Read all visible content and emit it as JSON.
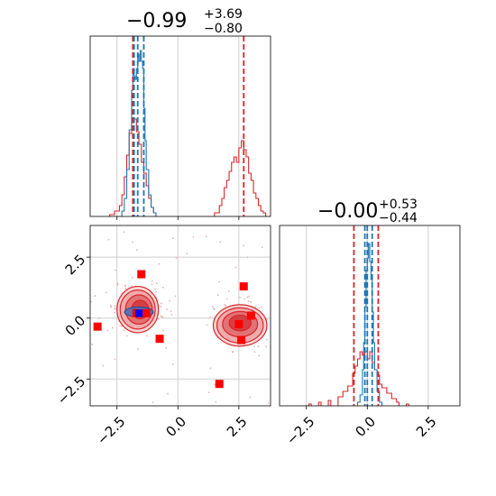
{
  "chart_data": {
    "type": "corner",
    "range": [
      -3.6,
      3.8
    ],
    "panels": [
      {
        "id": "hist1",
        "kind": "hist",
        "title": {
          "main": "−0.99",
          "sup": "+3.69",
          "sub": "−0.80"
        },
        "quantile_lines": {
          "red": [
            -1.85,
            2.7
          ],
          "blue": [
            -1.8,
            -1.65,
            -1.4
          ]
        },
        "series": [
          {
            "name": "red",
            "color": "#d62728",
            "bins": [
              [
                -2.8,
                0.01
              ],
              [
                -2.6,
                0.03
              ],
              [
                -2.4,
                0.06
              ],
              [
                -2.3,
                0.12
              ],
              [
                -2.2,
                0.22
              ],
              [
                -2.1,
                0.34
              ],
              [
                -2.0,
                0.46
              ],
              [
                -1.9,
                0.52
              ],
              [
                -1.8,
                0.54
              ],
              [
                -1.7,
                0.47
              ],
              [
                -1.6,
                0.4
              ],
              [
                -1.5,
                0.3
              ],
              [
                -1.4,
                0.24
              ],
              [
                -1.3,
                0.17
              ],
              [
                -1.2,
                0.1
              ],
              [
                -1.1,
                0.05
              ],
              [
                -1.0,
                0.02
              ],
              [
                1.5,
                0.02
              ],
              [
                1.7,
                0.06
              ],
              [
                1.8,
                0.1
              ],
              [
                1.9,
                0.16
              ],
              [
                2.0,
                0.2
              ],
              [
                2.1,
                0.25
              ],
              [
                2.2,
                0.3
              ],
              [
                2.3,
                0.33
              ],
              [
                2.4,
                0.3
              ],
              [
                2.5,
                0.38
              ],
              [
                2.6,
                0.42
              ],
              [
                2.7,
                0.37
              ],
              [
                2.8,
                0.33
              ],
              [
                2.9,
                0.24
              ],
              [
                3.0,
                0.2
              ],
              [
                3.1,
                0.13
              ],
              [
                3.2,
                0.1
              ],
              [
                3.3,
                0.06
              ],
              [
                3.4,
                0.03
              ],
              [
                3.5,
                0.02
              ]
            ]
          },
          {
            "name": "blue",
            "color": "#1f77b4",
            "bins": [
              [
                -2.3,
                0.03
              ],
              [
                -2.2,
                0.1
              ],
              [
                -2.1,
                0.26
              ],
              [
                -2.0,
                0.48
              ],
              [
                -1.9,
                0.7
              ],
              [
                -1.85,
                0.82
              ],
              [
                -1.8,
                0.78
              ],
              [
                -1.75,
                0.76
              ],
              [
                -1.7,
                0.82
              ],
              [
                -1.65,
                0.9
              ],
              [
                -1.6,
                0.86
              ],
              [
                -1.55,
                0.92
              ],
              [
                -1.5,
                0.86
              ],
              [
                -1.45,
                0.82
              ],
              [
                -1.4,
                0.6
              ],
              [
                -1.35,
                0.42
              ],
              [
                -1.3,
                0.26
              ],
              [
                -1.2,
                0.12
              ],
              [
                -1.1,
                0.05
              ],
              [
                -1.0,
                0.02
              ]
            ]
          }
        ]
      },
      {
        "id": "scatter",
        "kind": "2d",
        "xticks": [
          -2.5,
          0.0,
          2.5
        ],
        "yticks": [
          -2.5,
          0.0,
          2.5
        ],
        "markers_red": [
          [
            -1.5,
            1.8
          ],
          [
            -3.3,
            -0.35
          ],
          [
            -0.75,
            -0.85
          ],
          [
            -1.3,
            0.2
          ],
          [
            -1.7,
            0.2
          ],
          [
            2.7,
            1.3
          ],
          [
            2.5,
            -0.25
          ],
          [
            2.6,
            -0.9
          ],
          [
            3.0,
            0.1
          ],
          [
            1.7,
            -2.7
          ]
        ],
        "markers_blue": [
          [
            -1.6,
            0.2
          ]
        ],
        "contours": [
          {
            "cx": -1.65,
            "cy": 0.35,
            "rx": 0.85,
            "ry": 0.95
          },
          {
            "cx": -1.65,
            "cy": 0.35,
            "rx": 0.72,
            "ry": 0.8
          },
          {
            "cx": -1.6,
            "cy": 0.35,
            "rx": 0.55,
            "ry": 0.6
          },
          {
            "cx": -1.55,
            "cy": 0.35,
            "rx": 0.35,
            "ry": 0.38
          },
          {
            "cx": 2.55,
            "cy": -0.3,
            "rx": 1.1,
            "ry": 0.85
          },
          {
            "cx": 2.55,
            "cy": -0.3,
            "rx": 0.95,
            "ry": 0.72
          },
          {
            "cx": 2.55,
            "cy": -0.25,
            "rx": 0.72,
            "ry": 0.52
          },
          {
            "cx": 2.55,
            "cy": -0.2,
            "rx": 0.45,
            "ry": 0.32
          }
        ]
      },
      {
        "id": "hist2",
        "kind": "hist",
        "title": {
          "main": "−0.00",
          "sup": "+0.53",
          "sub": "−0.44"
        },
        "xticks": [
          -2.5,
          0.0,
          2.5
        ],
        "quantile_lines": {
          "red": [
            -0.55,
            0.45
          ],
          "blue": [
            -0.1,
            0.0,
            0.2
          ]
        },
        "series": [
          {
            "name": "red",
            "color": "#d62728",
            "bins": [
              [
                -2.4,
                0.01
              ],
              [
                -2.0,
                0.02
              ],
              [
                -1.6,
                0.03
              ],
              [
                -1.2,
                0.05
              ],
              [
                -1.0,
                0.08
              ],
              [
                -0.8,
                0.11
              ],
              [
                -0.6,
                0.18
              ],
              [
                -0.5,
                0.22
              ],
              [
                -0.4,
                0.26
              ],
              [
                -0.3,
                0.3
              ],
              [
                -0.2,
                0.28
              ],
              [
                -0.1,
                0.3
              ],
              [
                0.0,
                0.26
              ],
              [
                0.1,
                0.3
              ],
              [
                0.2,
                0.24
              ],
              [
                0.3,
                0.2
              ],
              [
                0.4,
                0.17
              ],
              [
                0.5,
                0.12
              ],
              [
                0.6,
                0.1
              ],
              [
                0.8,
                0.07
              ],
              [
                1.0,
                0.04
              ],
              [
                1.2,
                0.02
              ],
              [
                1.6,
                0.01
              ]
            ]
          },
          {
            "name": "blue",
            "color": "#1f77b4",
            "bins": [
              [
                -0.4,
                0.02
              ],
              [
                -0.3,
                0.06
              ],
              [
                -0.2,
                0.2
              ],
              [
                -0.15,
                0.35
              ],
              [
                -0.1,
                0.55
              ],
              [
                -0.05,
                0.75
              ],
              [
                0.0,
                0.82
              ],
              [
                0.05,
                0.9
              ],
              [
                0.1,
                0.8
              ],
              [
                0.15,
                0.7
              ],
              [
                0.2,
                0.52
              ],
              [
                0.25,
                0.35
              ],
              [
                0.3,
                0.2
              ],
              [
                0.4,
                0.08
              ],
              [
                0.5,
                0.02
              ]
            ]
          }
        ]
      }
    ]
  }
}
